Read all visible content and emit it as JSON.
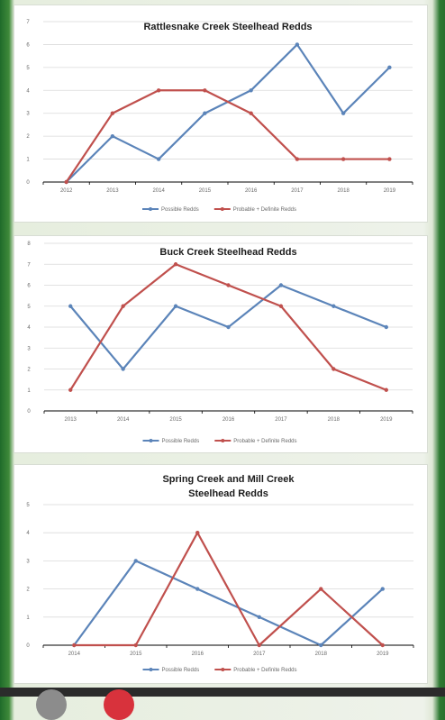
{
  "colors": {
    "possible": "#5b84b9",
    "probable": "#c0504d",
    "axis": "#000000",
    "grid": "#d9d9d9",
    "avatar_gray": "#8c8c8c",
    "avatar_red": "#d8323c"
  },
  "chart_data": [
    {
      "type": "line",
      "title_lines": [
        "Rattlesnake Creek Steelhead Redds"
      ],
      "x": [
        "2012",
        "2013",
        "2014",
        "2015",
        "2016",
        "2017",
        "2018",
        "2019"
      ],
      "ylim": [
        0,
        7
      ],
      "yticks": [
        "0",
        "1",
        "2",
        "3",
        "4",
        "5",
        "6",
        "7"
      ],
      "series": [
        {
          "name": "Possible Redds",
          "values": [
            0,
            2,
            1,
            3,
            4,
            6,
            3,
            5
          ]
        },
        {
          "name": "Probable + Definite Redds",
          "values": [
            0,
            3,
            4,
            4,
            3,
            1,
            1,
            1
          ]
        }
      ],
      "legend": "bottom",
      "grid": true
    },
    {
      "type": "line",
      "title_lines": [
        "Buck Creek Steelhead Redds"
      ],
      "x": [
        "2013",
        "2014",
        "2015",
        "2016",
        "2017",
        "2018",
        "2019"
      ],
      "ylim": [
        0,
        8
      ],
      "yticks": [
        "0",
        "1",
        "2",
        "3",
        "4",
        "5",
        "6",
        "7",
        "8"
      ],
      "series": [
        {
          "name": "Possible Redds",
          "values": [
            5,
            2,
            5,
            4,
            6,
            5,
            4
          ]
        },
        {
          "name": "Probable + Definite Redds",
          "values": [
            1,
            5,
            7,
            6,
            5,
            2,
            1
          ]
        }
      ],
      "legend": "bottom",
      "grid": true
    },
    {
      "type": "line",
      "title_lines": [
        "Spring Creek and Mill Creek",
        "Steelhead Redds"
      ],
      "x": [
        "2014",
        "2015",
        "2016",
        "2017",
        "2018",
        "2019"
      ],
      "ylim": [
        0,
        5
      ],
      "yticks": [
        "0",
        "1",
        "2",
        "3",
        "4",
        "5"
      ],
      "series": [
        {
          "name": "Possible Redds",
          "values": [
            0,
            3,
            2,
            1,
            0,
            2
          ]
        },
        {
          "name": "Probable + Definite Redds",
          "values": [
            0,
            0,
            4,
            0,
            2,
            0
          ]
        }
      ],
      "legend": "bottom",
      "grid": true
    }
  ]
}
